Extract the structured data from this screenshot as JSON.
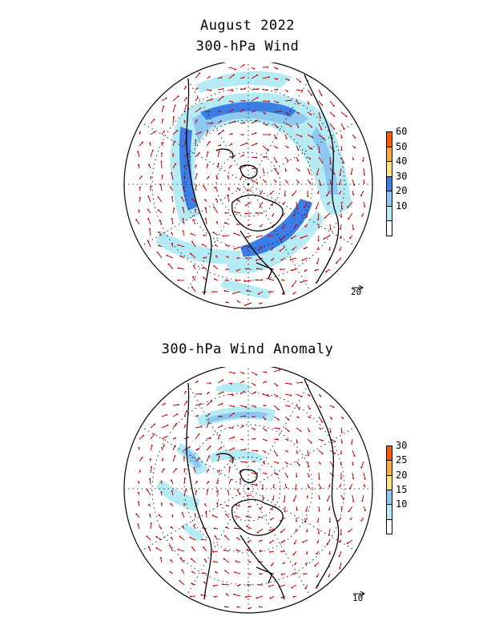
{
  "header": {
    "title": "August 2022",
    "panel1_title": "300-hPa Wind",
    "panel2_title": "300-hPa Wind Anomaly"
  },
  "panel1": {
    "colorbar": [
      {
        "label": "",
        "color": "#ffffff"
      },
      {
        "label": "10",
        "color": "#b5ebf5"
      },
      {
        "label": "20",
        "color": "#8cc8f0"
      },
      {
        "label": "30",
        "color": "#3c7ee6"
      },
      {
        "label": "40",
        "color": "#ffe67a"
      },
      {
        "label": "50",
        "color": "#ffaa32"
      },
      {
        "label": "60",
        "color": "#ff5a00"
      }
    ],
    "reference_vector": "20"
  },
  "panel2": {
    "colorbar": [
      {
        "label": "",
        "color": "#ffffff"
      },
      {
        "label": "10",
        "color": "#b5ebf5"
      },
      {
        "label": "15",
        "color": "#8cc8f0"
      },
      {
        "label": "20",
        "color": "#ffe67a"
      },
      {
        "label": "25",
        "color": "#ffaa32"
      },
      {
        "label": "30",
        "color": "#ff5a00"
      }
    ],
    "reference_vector": "10"
  },
  "colors": {
    "vector": "#cc0000",
    "coast": "#000000",
    "grid": "#000000"
  }
}
